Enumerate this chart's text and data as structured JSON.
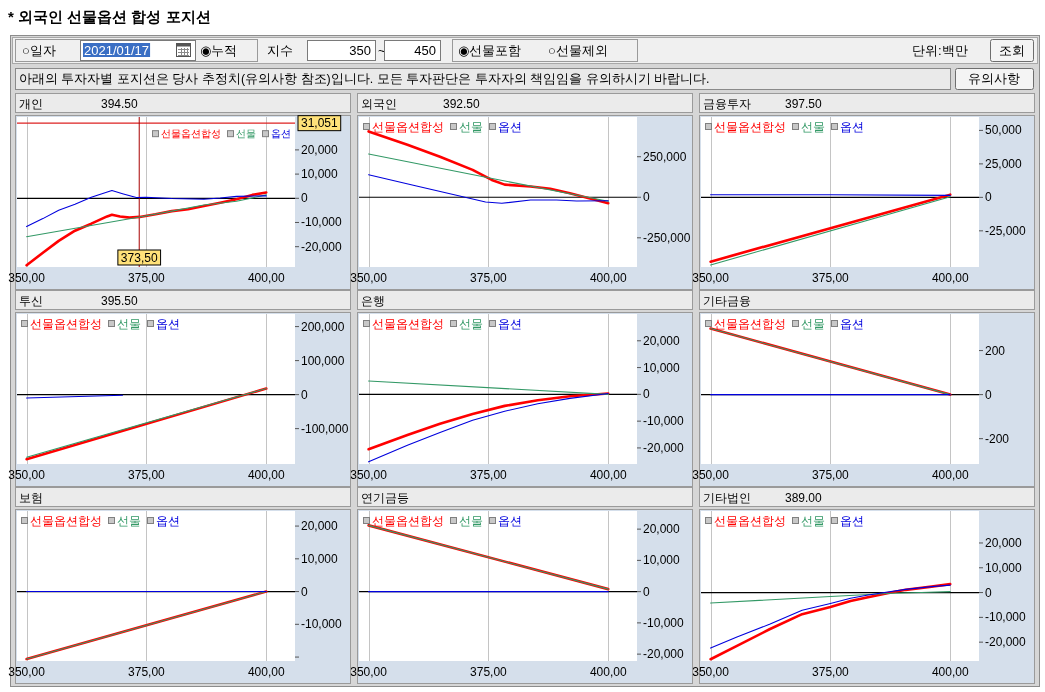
{
  "chart_data": [
    {
      "type": "other",
      "title": "* 외국인 선물옵션 합성 포지션",
      "annotations": [
        "○일자",
        "2021/01/17",
        "◉누적",
        "지수",
        "350",
        "~",
        "450",
        "◉선물포함",
        "○선물제외",
        "단위:백만",
        "조회",
        "아래의 투자자별 포지션은 당사 추정치(유의사항 참조)입니다. 모든 투자판단은 투자자의 책임임을 유의하시기 바랍니다.",
        "유의사항"
      ]
    },
    {
      "type": "line",
      "title": "개인",
      "subtitle": "394.50",
      "xlim": [
        348,
        406
      ],
      "xticks": [
        {
          "value": 350,
          "label": "350,00"
        },
        {
          "value": 375,
          "label": "375,00"
        },
        {
          "value": 400,
          "label": "400,00"
        }
      ],
      "ylim": [
        -28400,
        33600
      ],
      "yticks": [
        {
          "value": 20000,
          "label": "20,000"
        },
        {
          "value": 10000,
          "label": "10,000"
        },
        0,
        {
          "value": -10000,
          "label": "-10,000"
        },
        {
          "value": -20000,
          "label": "-20,000"
        }
      ],
      "grid": "x",
      "legend": "top right",
      "ref_lines": [
        {
          "axis": "y",
          "value": 0,
          "color": "#000000"
        },
        {
          "axis": "y",
          "value": 31051,
          "label": "31,051",
          "color": "#dd2222"
        },
        {
          "axis": "x",
          "value": 373.5,
          "label": "373,50",
          "color": "#a80000"
        }
      ],
      "series": [
        {
          "name": "선물옵션합성",
          "color": "#ff0000",
          "x": [
            350,
            353.4,
            356.7,
            360.1,
            363.5,
            366.8,
            367.8,
            369.5,
            371.5,
            373.6,
            376.9,
            380.3,
            383.7,
            387,
            390.4,
            393.8,
            397.1,
            400
          ],
          "values": [
            -27700,
            -22500,
            -17600,
            -13400,
            -10500,
            -7500,
            -6800,
            -7500,
            -8000,
            -7700,
            -6600,
            -5300,
            -4500,
            -3200,
            -1800,
            -400,
            1400,
            2400
          ]
        },
        {
          "name": "선물",
          "color": "#339966",
          "x": [
            350,
            373.6,
            380.3,
            387,
            393.8,
            400
          ],
          "values": [
            -15900,
            -7700,
            -5300,
            -2800,
            -1200,
            1400
          ]
        },
        {
          "name": "옵션",
          "color": "#0000dd",
          "x": [
            350,
            353.4,
            356.7,
            360.1,
            363.5,
            367.8,
            370.2,
            372.9,
            374.9,
            380.3,
            387,
            390.4,
            393.8,
            400
          ],
          "values": [
            -11700,
            -8400,
            -4900,
            -2500,
            400,
            3200,
            1800,
            300,
            400,
            -100,
            -400,
            100,
            800,
            1000
          ]
        }
      ]
    },
    {
      "type": "line",
      "title": "외국인",
      "subtitle": "392.50",
      "xlim": [
        348,
        406
      ],
      "xticks": [
        {
          "value": 350,
          "label": "350,00"
        },
        {
          "value": 375,
          "label": "375,00"
        },
        {
          "value": 400,
          "label": "400,00"
        }
      ],
      "ylim": [
        -430000,
        495000
      ],
      "yticks": [
        {
          "value": 250000,
          "label": "250,000"
        },
        0,
        {
          "value": -250000,
          "label": "-250,000"
        }
      ],
      "grid": "x",
      "legend": "top left",
      "ref_lines": [
        {
          "axis": "y",
          "value": 0,
          "color": "#000000"
        }
      ],
      "series": [
        {
          "name": "선물옵션합성",
          "color": "#ff0000",
          "x": [
            350,
            358.1,
            364.9,
            371.7,
            375.7,
            378.4,
            383.8,
            387.9,
            392,
            396.2,
            400
          ],
          "values": [
            406000,
            324000,
            250000,
            169000,
            107000,
            78000,
            66000,
            53000,
            25000,
            -8000,
            -37000
          ]
        },
        {
          "name": "선물",
          "color": "#339966",
          "x": [
            350,
            375,
            400
          ],
          "values": [
            267000,
            120000,
            -25000
          ]
        },
        {
          "name": "옵션",
          "color": "#0000dd",
          "x": [
            350,
            360,
            374.4,
            377.8,
            383.8,
            389.2,
            393.4,
            400
          ],
          "values": [
            139000,
            70000,
            -29000,
            -37000,
            -17000,
            -17000,
            -23000,
            -21000
          ]
        }
      ]
    },
    {
      "type": "line",
      "title": "금융투자",
      "subtitle": "397.50",
      "xlim": [
        348,
        406
      ],
      "xticks": [
        {
          "value": 350,
          "label": "350,00"
        },
        {
          "value": 375,
          "label": "375,00"
        },
        {
          "value": 400,
          "label": "400,00"
        }
      ],
      "ylim": [
        -52000,
        60000
      ],
      "yticks": [
        {
          "value": 50000,
          "label": "50,000"
        },
        {
          "value": 25000,
          "label": "25,000"
        },
        0,
        {
          "value": -25000,
          "label": "-25,000"
        }
      ],
      "grid": "x",
      "legend": "top left",
      "ref_lines": [
        {
          "axis": "y",
          "value": 0,
          "color": "#000000"
        }
      ],
      "series": [
        {
          "name": "선물옵션합성",
          "color": "#ff0000",
          "x": [
            350,
            400
          ],
          "values": [
            -48000,
            2000
          ]
        },
        {
          "name": "선물",
          "color": "#339966",
          "x": [
            350,
            400
          ],
          "values": [
            -50500,
            500
          ]
        },
        {
          "name": "옵션",
          "color": "#0000dd",
          "x": [
            350,
            375,
            400
          ],
          "values": [
            2000,
            2000,
            1500
          ]
        }
      ]
    },
    {
      "type": "line",
      "title": "투신",
      "subtitle": "395.50",
      "xlim": [
        348,
        406
      ],
      "xticks": [
        {
          "value": 350,
          "label": "350,00"
        },
        {
          "value": 375,
          "label": "375,00"
        },
        {
          "value": 400,
          "label": "400,00"
        }
      ],
      "ylim": [
        -204000,
        237000
      ],
      "yticks": [
        {
          "value": 200000,
          "label": "200,000"
        },
        {
          "value": 100000,
          "label": "100,000"
        },
        0,
        {
          "value": -100000,
          "label": "-100,000"
        }
      ],
      "grid": "x",
      "legend": "top left",
      "ref_lines": [
        {
          "axis": "y",
          "value": 0,
          "color": "#000000"
        }
      ],
      "series": [
        {
          "name": "선물옵션합성",
          "color": "#ff0000",
          "x": [
            350,
            400
          ],
          "values": [
            -190000,
            18000
          ]
        },
        {
          "name": "선물",
          "color": "#339966",
          "x": [
            350,
            400
          ],
          "values": [
            -184000,
            18000
          ]
        },
        {
          "name": "옵션",
          "color": "#0000dd",
          "x": [
            350,
            370
          ],
          "values": [
            -10000,
            -2000
          ]
        }
      ]
    },
    {
      "type": "line",
      "title": "은행",
      "xlim": [
        348,
        406
      ],
      "xticks": [
        {
          "value": 350,
          "label": "350,00"
        },
        {
          "value": 375,
          "label": "375,00"
        },
        {
          "value": 400,
          "label": "400,00"
        }
      ],
      "ylim": [
        -26000,
        30000
      ],
      "yticks": [
        {
          "value": 20000,
          "label": "20,000"
        },
        {
          "value": 10000,
          "label": "10,000"
        },
        0,
        {
          "value": -10000,
          "label": "-10,000"
        },
        {
          "value": -20000,
          "label": "-20,000"
        }
      ],
      "grid": "x",
      "legend": "top left",
      "ref_lines": [
        {
          "axis": "y",
          "value": 0,
          "color": "#000000"
        }
      ],
      "series": [
        {
          "name": "선물옵션합성",
          "color": "#ff0000",
          "x": [
            350,
            358.1,
            364.9,
            371.7,
            378.4,
            385.3,
            392,
            400
          ],
          "values": [
            -20500,
            -15200,
            -11000,
            -7300,
            -4300,
            -2200,
            -700,
            300
          ]
        },
        {
          "name": "선물",
          "color": "#339966",
          "x": [
            350,
            400
          ],
          "values": [
            5000,
            0
          ]
        },
        {
          "name": "옵션",
          "color": "#0000dd",
          "x": [
            350,
            358.1,
            364.9,
            371.7,
            378.4,
            385.3,
            392,
            400
          ],
          "values": [
            -25200,
            -19000,
            -14200,
            -9700,
            -6300,
            -3500,
            -1500,
            300
          ]
        }
      ]
    },
    {
      "type": "line",
      "title": "기타금융",
      "xlim": [
        348,
        406
      ],
      "xticks": [
        {
          "value": 350,
          "label": "350,00"
        },
        {
          "value": 375,
          "label": "375,00"
        },
        {
          "value": 400,
          "label": "400,00"
        }
      ],
      "ylim": [
        -315,
        366
      ],
      "yticks": [
        200,
        0,
        -200
      ],
      "grid": "x",
      "legend": "top left",
      "ref_lines": [
        {
          "axis": "y",
          "value": 0,
          "color": "#000000"
        }
      ],
      "series": [
        {
          "name": "선물옵션합성",
          "color": "#ff0000",
          "x": [
            350,
            400
          ],
          "values": [
            300,
            0
          ]
        },
        {
          "name": "선물",
          "color": "#339966",
          "x": [
            350,
            400
          ],
          "values": [
            300,
            0
          ]
        },
        {
          "name": "옵션",
          "color": "#0000dd",
          "x": [
            350,
            400
          ],
          "values": [
            0,
            0
          ]
        }
      ]
    },
    {
      "type": "line",
      "title": "보험",
      "xlim": [
        348,
        406
      ],
      "xticks": [
        {
          "value": 350,
          "label": "350,00"
        },
        {
          "value": 375,
          "label": "375,00"
        },
        {
          "value": 400,
          "label": "400,00"
        }
      ],
      "ylim": [
        -21200,
        24600
      ],
      "yticks": [
        {
          "value": 20000,
          "label": "20,000"
        },
        {
          "value": 10000,
          "label": "10,000"
        },
        0,
        {
          "value": -10000,
          "label": "-10,000"
        },
        {
          "value": -20000,
          "label": null
        }
      ],
      "grid": "x",
      "legend": "top left",
      "ref_lines": [
        {
          "axis": "y",
          "value": 0,
          "color": "#000000"
        }
      ],
      "series": [
        {
          "name": "선물옵션합성",
          "color": "#ff0000",
          "x": [
            350,
            400
          ],
          "values": [
            -20600,
            0
          ]
        },
        {
          "name": "선물",
          "color": "#339966",
          "x": [
            350,
            400
          ],
          "values": [
            -20600,
            0
          ]
        },
        {
          "name": "옵션",
          "color": "#0000dd",
          "x": [
            350,
            400
          ],
          "values": [
            0,
            0
          ]
        }
      ]
    },
    {
      "type": "line",
      "title": "연기금등",
      "xlim": [
        348,
        406
      ],
      "xticks": [
        {
          "value": 350,
          "label": "350,00"
        },
        {
          "value": 375,
          "label": "375,00"
        },
        {
          "value": 400,
          "label": "400,00"
        }
      ],
      "ylim": [
        -22200,
        25800
      ],
      "yticks": [
        {
          "value": 20000,
          "label": "20,000"
        },
        {
          "value": 10000,
          "label": "10,000"
        },
        0,
        {
          "value": -10000,
          "label": "-10,000"
        },
        {
          "value": -20000,
          "label": "-20,000"
        }
      ],
      "grid": "x",
      "legend": "top left",
      "ref_lines": [
        {
          "axis": "y",
          "value": 0,
          "color": "#000000"
        }
      ],
      "series": [
        {
          "name": "선물옵션합성",
          "color": "#ff0000",
          "x": [
            350,
            400
          ],
          "values": [
            21200,
            800
          ]
        },
        {
          "name": "선물",
          "color": "#339966",
          "x": [
            350,
            400
          ],
          "values": [
            21200,
            800
          ]
        },
        {
          "name": "옵션",
          "color": "#0000dd",
          "x": [
            350,
            400
          ],
          "values": [
            0,
            0
          ]
        }
      ]
    },
    {
      "type": "line",
      "title": "기타법인",
      "subtitle": "389.00",
      "xlim": [
        348,
        406
      ],
      "xticks": [
        {
          "value": 350,
          "label": "350,00"
        },
        {
          "value": 375,
          "label": "375,00"
        },
        {
          "value": 400,
          "label": "400,00"
        }
      ],
      "ylim": [
        -27600,
        32900
      ],
      "yticks": [
        {
          "value": 20000,
          "label": "20,000"
        },
        {
          "value": 10000,
          "label": "10,000"
        },
        0,
        {
          "value": -10000,
          "label": "-10,000"
        },
        {
          "value": -20000,
          "label": "-20,000"
        }
      ],
      "grid": "x",
      "legend": "top left",
      "ref_lines": [
        {
          "axis": "y",
          "value": 0,
          "color": "#000000"
        }
      ],
      "series": [
        {
          "name": "선물옵션합성",
          "color": "#ff0000",
          "x": [
            350,
            355.5,
            362.3,
            369.1,
            375,
            379.2,
            382.6,
            386.6,
            390.7,
            396.1,
            400
          ],
          "values": [
            -26900,
            -21500,
            -14800,
            -8700,
            -5800,
            -3400,
            -2000,
            -400,
            1100,
            2400,
            3400
          ]
        },
        {
          "name": "선물",
          "color": "#339966",
          "x": [
            350,
            375,
            388,
            394,
            400
          ],
          "values": [
            -4200,
            -1600,
            -300,
            0,
            400
          ]
        },
        {
          "name": "옵션",
          "color": "#0000dd",
          "x": [
            350,
            355.5,
            362.3,
            369.1,
            375,
            379.2,
            382.6,
            386.6,
            390.7,
            396.1,
            400
          ],
          "values": [
            -22400,
            -17900,
            -12800,
            -7100,
            -4400,
            -2300,
            -1100,
            100,
            1300,
            2400,
            3000
          ]
        }
      ]
    }
  ]
}
